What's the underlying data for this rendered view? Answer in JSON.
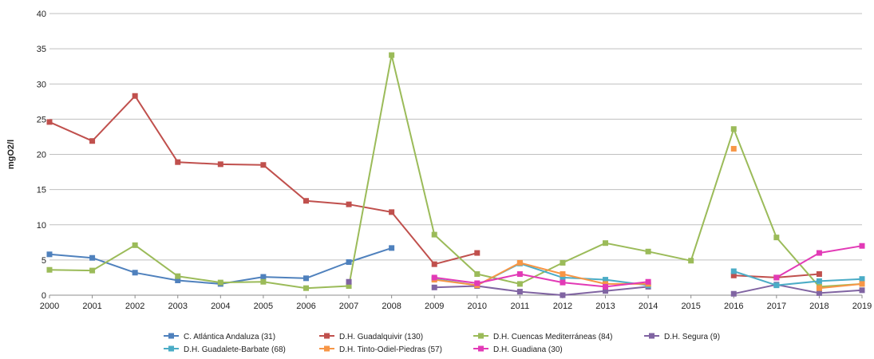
{
  "chart_data": {
    "type": "line",
    "title": "",
    "xlabel": "",
    "ylabel": "mgO2/l",
    "x": [
      2000,
      2001,
      2002,
      2003,
      2004,
      2005,
      2006,
      2007,
      2008,
      2009,
      2010,
      2011,
      2012,
      2013,
      2014,
      2015,
      2016,
      2017,
      2018,
      2019
    ],
    "x_tick_labels": [
      "2000",
      "2001",
      "2002",
      "2003",
      "2004",
      "2005",
      "2006",
      "2007",
      "2008",
      "2009",
      "2010",
      "2011",
      "2012",
      "2013",
      "2014",
      "2015",
      "2016",
      "2017",
      "2018",
      "2019"
    ],
    "ylim": [
      0,
      40
    ],
    "y_ticks": [
      0,
      5,
      10,
      15,
      20,
      25,
      30,
      35,
      40
    ],
    "y_tick_labels": [
      "0",
      "5",
      "10",
      "15",
      "20",
      "25",
      "30",
      "35",
      "40"
    ],
    "grid": true,
    "legend_position": "bottom",
    "series": [
      {
        "name": "C. Atlántica Andaluza (31)",
        "color": "#4f81bd",
        "values": [
          5.8,
          5.3,
          3.2,
          2.1,
          1.6,
          2.6,
          2.4,
          4.7,
          6.7,
          null,
          null,
          null,
          null,
          null,
          null,
          null,
          null,
          null,
          null,
          null
        ]
      },
      {
        "name": "D.H. Guadalquivir (130)",
        "color": "#c0504d",
        "values": [
          24.6,
          21.9,
          28.3,
          18.9,
          18.6,
          18.5,
          13.4,
          12.9,
          11.8,
          4.4,
          6.0,
          null,
          null,
          null,
          null,
          null,
          2.8,
          2.5,
          3.0,
          null
        ]
      },
      {
        "name": "D.H. Cuencas Mediterráneas (84)",
        "color": "#9bbb59",
        "values": [
          3.6,
          3.5,
          7.1,
          2.7,
          1.8,
          1.9,
          1.0,
          1.3,
          34.1,
          8.6,
          3.0,
          1.6,
          4.6,
          7.4,
          6.2,
          4.9,
          23.6,
          8.2,
          1.2,
          1.6
        ]
      },
      {
        "name": "D.H. Segura (9)",
        "color": "#8064a2",
        "values": [
          null,
          null,
          null,
          null,
          null,
          null,
          null,
          1.9,
          null,
          1.1,
          1.3,
          0.5,
          0.0,
          0.6,
          1.2,
          null,
          0.2,
          1.5,
          0.3,
          0.7
        ]
      },
      {
        "name": "D.H. Guadalete-Barbate (68)",
        "color": "#4bacc6",
        "values": [
          null,
          null,
          null,
          null,
          null,
          null,
          null,
          null,
          null,
          2.3,
          1.4,
          4.5,
          2.5,
          2.2,
          1.4,
          null,
          3.4,
          1.4,
          2.0,
          2.3
        ]
      },
      {
        "name": "D.H. Tinto-Odiel-Piedras (57)",
        "color": "#f79646",
        "values": [
          null,
          null,
          null,
          null,
          null,
          null,
          null,
          null,
          null,
          2.2,
          1.4,
          4.6,
          3.0,
          1.6,
          1.6,
          null,
          20.8,
          null,
          1.0,
          1.6
        ]
      },
      {
        "name": "D.H. Guadiana (30)",
        "color": "#e23ab6",
        "values": [
          null,
          null,
          null,
          null,
          null,
          null,
          null,
          null,
          null,
          2.5,
          1.7,
          3.0,
          1.8,
          1.2,
          1.9,
          null,
          null,
          2.5,
          6.0,
          7.0
        ]
      }
    ]
  }
}
